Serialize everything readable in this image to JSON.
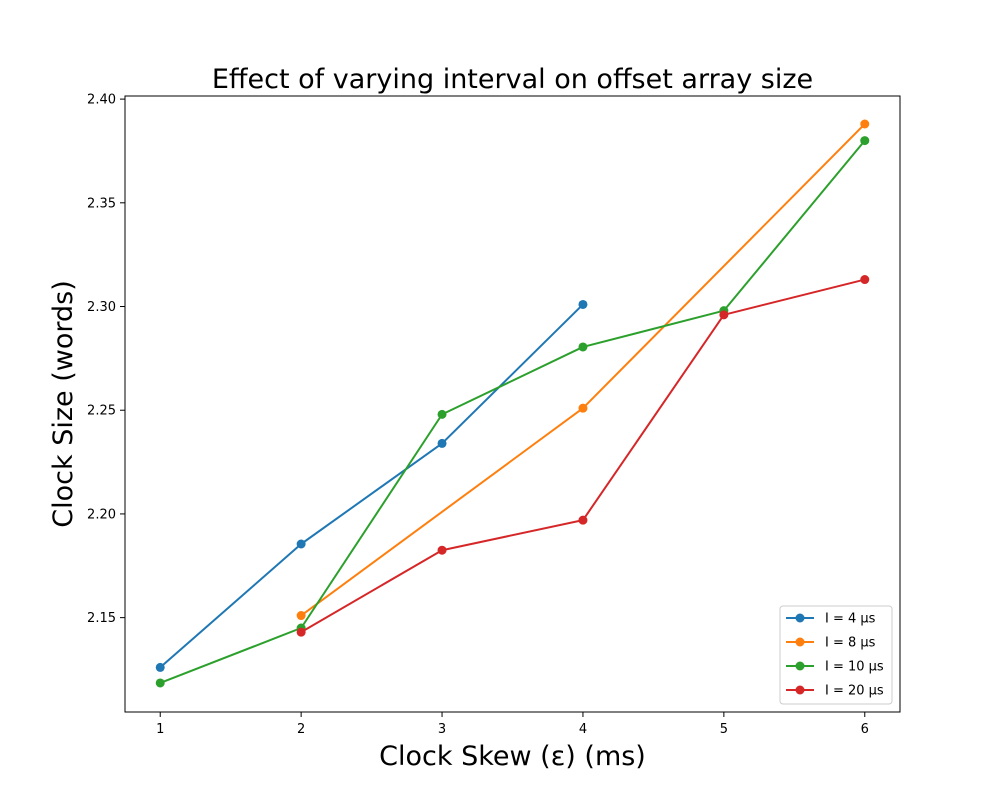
{
  "chart_data": {
    "type": "line",
    "title": "Effect of varying interval on offset array size",
    "xlabel": "Clock Skew (ε) (ms)",
    "ylabel": "Clock Size (words)",
    "xlim": [
      0.75,
      6.25
    ],
    "ylim": [
      2.1045,
      2.4015
    ],
    "xticks": [
      1,
      2,
      3,
      4,
      5,
      6
    ],
    "xtick_labels": [
      "1",
      "2",
      "3",
      "4",
      "5",
      "6"
    ],
    "yticks": [
      2.15,
      2.2,
      2.25,
      2.3,
      2.35,
      2.4
    ],
    "ytick_labels": [
      "2.15",
      "2.20",
      "2.25",
      "2.30",
      "2.35",
      "2.40"
    ],
    "grid": false,
    "legend_position": "lower-right",
    "series": [
      {
        "name": "I = 4 μs",
        "color": "#1f77b4",
        "x": [
          1,
          2,
          3,
          4
        ],
        "y": [
          2.126,
          2.1855,
          2.234,
          2.301
        ]
      },
      {
        "name": "I = 8 μs",
        "color": "#ff7f0e",
        "x": [
          2,
          4,
          6
        ],
        "y": [
          2.151,
          2.251,
          2.388
        ]
      },
      {
        "name": "I = 10 μs",
        "color": "#2ca02c",
        "x": [
          1,
          2,
          3,
          4,
          5,
          6
        ],
        "y": [
          2.1185,
          2.145,
          2.248,
          2.2805,
          2.298,
          2.38
        ]
      },
      {
        "name": "I = 20 μs",
        "color": "#d62728",
        "x": [
          2,
          3,
          4,
          5,
          6
        ],
        "y": [
          2.143,
          2.1825,
          2.197,
          2.296,
          2.313
        ]
      }
    ]
  }
}
